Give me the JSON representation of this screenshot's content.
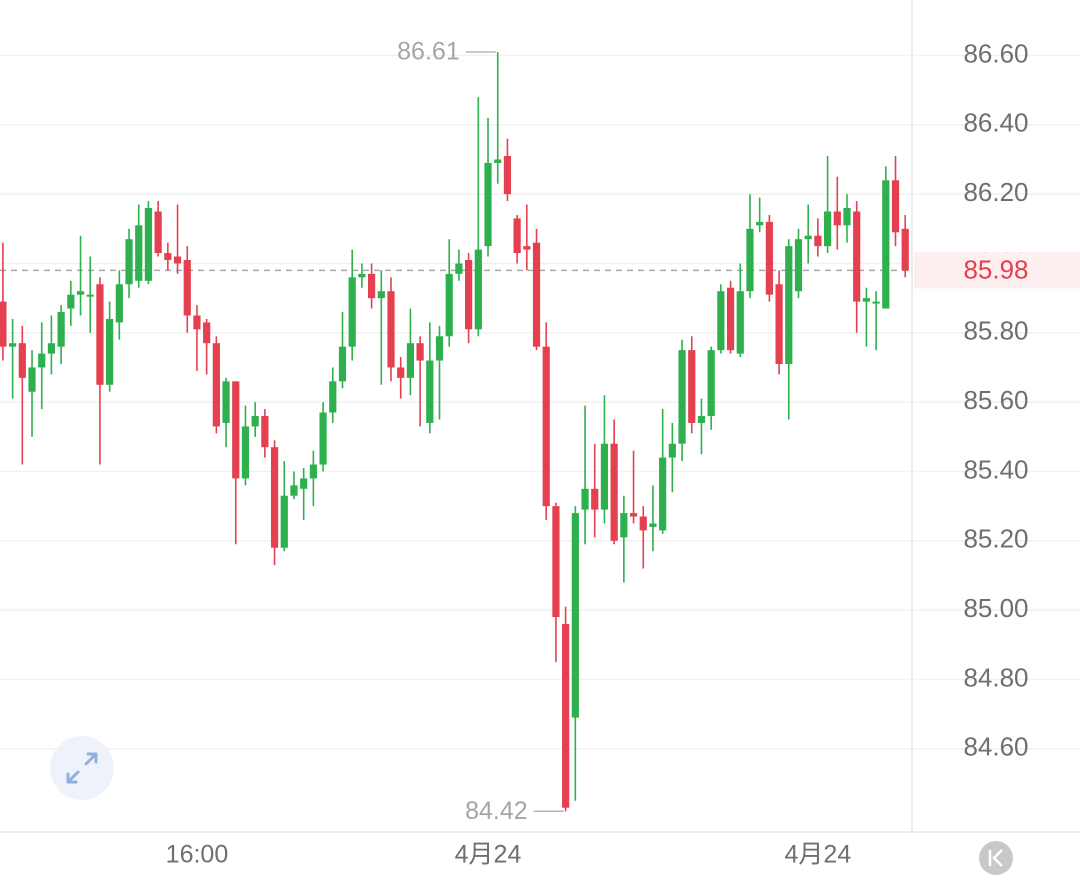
{
  "chart_data": {
    "type": "candlestick",
    "categories": [
      null,
      null,
      null,
      null,
      null,
      null,
      null,
      null,
      null,
      null,
      null,
      null,
      null,
      null,
      null,
      null,
      null,
      null,
      null,
      null,
      "16:00",
      null,
      null,
      null,
      null,
      null,
      null,
      null,
      null,
      null,
      null,
      null,
      null,
      null,
      null,
      null,
      null,
      null,
      null,
      null,
      null,
      null,
      null,
      null,
      null,
      null,
      null,
      null,
      null,
      null,
      "4月24",
      null,
      null,
      null,
      null,
      null,
      null,
      null,
      null,
      null,
      null,
      null,
      null,
      null,
      null,
      null,
      null,
      null,
      null,
      null,
      null,
      null,
      null,
      null,
      null,
      null,
      null,
      null,
      null,
      null,
      null,
      null,
      null,
      null,
      "4月24",
      null,
      null,
      null,
      null,
      null,
      null,
      null,
      null,
      null
    ],
    "open": [
      85.89,
      85.76,
      85.77,
      85.63,
      85.7,
      85.74,
      85.76,
      85.87,
      85.91,
      85.91,
      85.94,
      85.65,
      85.83,
      85.94,
      85.95,
      85.95,
      86.15,
      86.03,
      86.02,
      86.01,
      85.85,
      85.83,
      85.77,
      85.54,
      85.66,
      85.38,
      85.53,
      85.56,
      85.47,
      85.18,
      85.33,
      85.35,
      85.38,
      85.42,
      85.57,
      85.66,
      85.76,
      85.96,
      85.97,
      85.9,
      85.92,
      85.7,
      85.67,
      85.77,
      85.54,
      85.72,
      85.79,
      85.97,
      86.01,
      85.81,
      86.05,
      86.29,
      86.31,
      86.13,
      86.05,
      86.06,
      85.76,
      85.3,
      84.96,
      84.69,
      85.29,
      85.35,
      85.29,
      85.48,
      85.21,
      85.28,
      85.27,
      85.24,
      85.23,
      85.44,
      85.48,
      85.75,
      85.54,
      85.56,
      85.75,
      85.93,
      85.74,
      85.92,
      86.11,
      86.12,
      85.94,
      85.71,
      85.92,
      86.07,
      86.08,
      86.05,
      86.15,
      86.11,
      86.15,
      85.89,
      85.89,
      85.87,
      86.24,
      86.1
    ],
    "high": [
      86.06,
      85.84,
      85.82,
      85.75,
      85.83,
      85.85,
      85.88,
      85.95,
      86.08,
      86.02,
      85.96,
      85.89,
      85.98,
      86.1,
      86.17,
      86.18,
      86.18,
      86.06,
      86.17,
      86.05,
      85.88,
      85.84,
      85.79,
      85.67,
      85.66,
      85.59,
      85.6,
      85.58,
      85.49,
      85.43,
      85.4,
      85.41,
      85.46,
      85.6,
      85.7,
      85.86,
      86.04,
      86.0,
      86.0,
      85.98,
      85.96,
      85.73,
      85.87,
      85.79,
      85.83,
      85.82,
      86.07,
      86.04,
      86.03,
      86.48,
      86.42,
      86.61,
      86.36,
      86.14,
      86.17,
      86.1,
      85.83,
      85.31,
      85.01,
      85.3,
      85.59,
      85.48,
      85.62,
      85.55,
      85.33,
      85.46,
      85.3,
      85.36,
      85.58,
      85.54,
      85.78,
      85.79,
      85.61,
      85.76,
      85.94,
      85.95,
      86.0,
      86.2,
      86.19,
      86.14,
      85.98,
      86.07,
      86.1,
      86.17,
      86.13,
      86.31,
      86.25,
      86.2,
      86.18,
      85.93,
      85.92,
      86.28,
      86.31,
      86.14
    ],
    "low": [
      85.72,
      85.61,
      85.42,
      85.5,
      85.58,
      85.68,
      85.71,
      85.82,
      85.85,
      85.8,
      85.42,
      85.63,
      85.78,
      85.9,
      85.93,
      85.94,
      86.02,
      85.98,
      85.97,
      85.8,
      85.69,
      85.68,
      85.51,
      85.47,
      85.19,
      85.36,
      85.5,
      85.44,
      85.13,
      85.17,
      85.32,
      85.26,
      85.3,
      85.4,
      85.54,
      85.64,
      85.72,
      85.93,
      85.87,
      85.65,
      85.66,
      85.61,
      85.62,
      85.53,
      85.51,
      85.55,
      85.76,
      85.95,
      85.77,
      85.79,
      86.02,
      86.23,
      86.18,
      86.0,
      85.98,
      85.75,
      85.26,
      84.85,
      84.42,
      84.45,
      85.19,
      85.21,
      85.25,
      85.19,
      85.08,
      85.25,
      85.12,
      85.17,
      85.22,
      85.34,
      85.43,
      85.51,
      85.45,
      85.52,
      85.74,
      85.74,
      85.73,
      85.9,
      86.09,
      85.89,
      85.68,
      85.55,
      85.9,
      86.0,
      86.02,
      86.03,
      86.04,
      86.06,
      85.8,
      85.76,
      85.75,
      85.87,
      86.05,
      85.96
    ],
    "close": [
      85.76,
      85.77,
      85.67,
      85.7,
      85.74,
      85.77,
      85.86,
      85.91,
      85.92,
      85.91,
      85.65,
      85.84,
      85.94,
      86.07,
      86.11,
      86.16,
      86.03,
      86.01,
      86.0,
      85.85,
      85.81,
      85.77,
      85.53,
      85.66,
      85.38,
      85.53,
      85.56,
      85.47,
      85.18,
      85.33,
      85.36,
      85.38,
      85.42,
      85.57,
      85.66,
      85.76,
      85.96,
      85.97,
      85.9,
      85.92,
      85.7,
      85.67,
      85.77,
      85.72,
      85.72,
      85.79,
      85.97,
      86.0,
      85.81,
      86.04,
      86.29,
      86.3,
      86.2,
      86.03,
      86.04,
      85.76,
      85.3,
      84.98,
      84.43,
      85.28,
      85.35,
      85.29,
      85.48,
      85.2,
      85.28,
      85.27,
      85.23,
      85.25,
      85.44,
      85.48,
      85.75,
      85.54,
      85.56,
      85.75,
      85.92,
      85.75,
      85.92,
      86.1,
      86.12,
      85.91,
      85.71,
      86.05,
      86.07,
      86.08,
      86.05,
      86.15,
      86.11,
      86.16,
      85.89,
      85.9,
      85.89,
      86.24,
      86.09,
      85.98
    ],
    "up_color": "#2fb04e",
    "down_color": "#e5404f",
    "last_price": 85.98,
    "ylim": [
      84.36,
      86.76
    ],
    "yticks": [
      {
        "value": 84.6,
        "label": "84.60"
      },
      {
        "value": 84.8,
        "label": "84.80"
      },
      {
        "value": 85,
        "label": "85.00"
      },
      {
        "value": 85.2,
        "label": "85.20"
      },
      {
        "value": 85.4,
        "label": "85.40"
      },
      {
        "value": 85.6,
        "label": "85.60"
      },
      {
        "value": 85.8,
        "label": "85.80"
      },
      {
        "value": 86,
        "label": "86.00"
      },
      {
        "value": 86.2,
        "label": "86.20"
      },
      {
        "value": 86.4,
        "label": "86.40"
      },
      {
        "value": 86.6,
        "label": "86.60"
      }
    ],
    "grid": true
  }
}
